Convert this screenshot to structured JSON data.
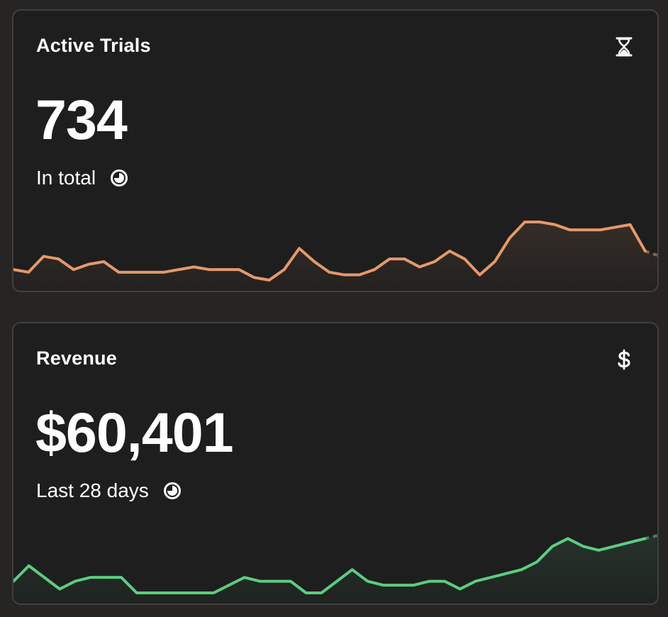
{
  "cards": [
    {
      "title": "Active Trials",
      "icon": "hourglass-icon",
      "value": "734",
      "subtitle": "In total",
      "subtitle_icon": "clock-icon",
      "color": "#e5996b",
      "series": [
        50,
        49,
        55,
        54,
        50,
        52,
        53,
        49,
        49,
        49,
        49,
        50,
        51,
        50,
        50,
        50,
        47,
        46,
        50,
        58,
        53,
        49,
        48,
        48,
        50,
        54,
        54,
        51,
        53,
        57,
        54,
        48,
        53,
        62,
        68,
        68,
        67,
        65,
        65,
        65,
        66,
        67,
        57,
        55
      ]
    },
    {
      "title": "Revenue",
      "icon": "dollar-icon",
      "value": "$60,401",
      "subtitle": "Last 28 days",
      "subtitle_icon": "clock-icon",
      "color": "#5ccd82",
      "series": [
        40,
        44,
        41,
        38,
        40,
        41,
        41,
        41,
        37,
        37,
        37,
        37,
        37,
        37,
        39,
        41,
        40,
        40,
        40,
        37,
        37,
        40,
        43,
        40,
        39,
        39,
        39,
        40,
        40,
        38,
        40,
        41,
        42,
        43,
        45,
        49,
        51,
        49,
        48,
        49,
        50,
        51,
        52
      ]
    }
  ]
}
